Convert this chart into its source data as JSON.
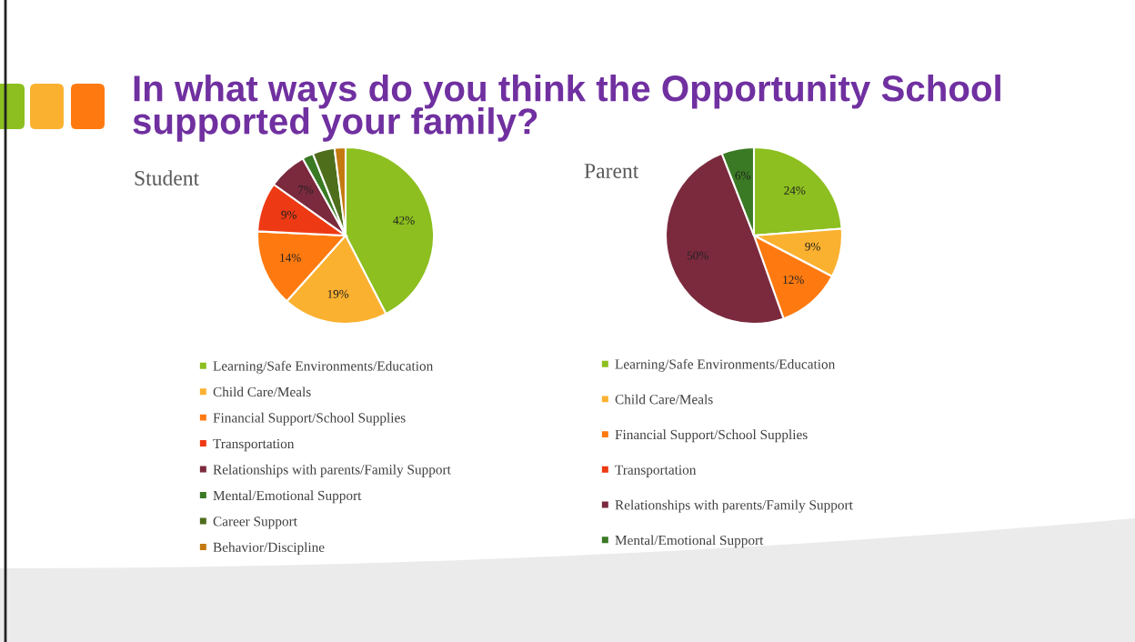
{
  "chart_data": [
    {
      "type": "pie",
      "title": "Student",
      "annotations": [
        "In what ways do you think the Opportunity School supported your family?"
      ],
      "categories": [
        "Learning/Safe Environments/Education",
        "Child Care/Meals",
        "Financial Support/School Supplies",
        "Transportation",
        "Relationships with parents/Family Support",
        "Mental/Emotional Support",
        "Career Support",
        "Behavior/Discipline"
      ],
      "values": [
        42,
        19,
        14,
        9,
        7,
        2,
        4,
        2
      ],
      "value_labels": [
        "42%",
        "19%",
        "14%",
        "9%",
        "7%",
        null,
        null,
        null
      ],
      "colors": [
        "#8cbf1f",
        "#fbb130",
        "#fe7a10",
        "#ee3a14",
        "#7b2a3e",
        "#3a7a24",
        "#4e6e1c",
        "#c47a10"
      ],
      "legend": "bottom"
    },
    {
      "type": "pie",
      "title": "Parent",
      "categories": [
        "Learning/Safe Environments/Education",
        "Child Care/Meals",
        "Financial Support/School Supplies",
        "Transportation",
        "Relationships with parents/Family Support",
        "Mental/Emotional Support"
      ],
      "values": [
        24,
        9,
        12,
        0,
        50,
        6
      ],
      "value_labels": [
        "24%",
        "9%",
        "12%",
        null,
        "50%",
        "6%"
      ],
      "colors": [
        "#8cbf1f",
        "#fbb130",
        "#fe7a10",
        "#ee3a14",
        "#7b2a3e",
        "#3a7a24"
      ],
      "legend": "bottom"
    }
  ]
}
